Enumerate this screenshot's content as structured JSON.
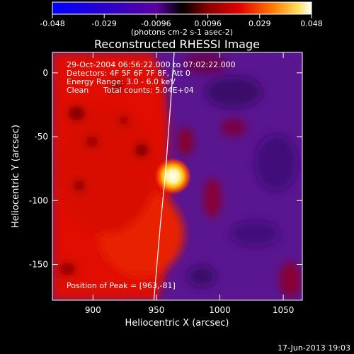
{
  "chart_data": {
    "type": "heatmap",
    "title": "Reconstructed RHESSI Image",
    "xlabel": "Heliocentric X (arcsec)",
    "ylabel": "Heliocentric Y (arcsec)",
    "xlim": [
      868,
      1065
    ],
    "ylim": [
      -178,
      16
    ],
    "x_ticks": [
      900,
      950,
      1000,
      1050
    ],
    "y_ticks": [
      0,
      -50,
      -100,
      -150
    ],
    "colorbar": {
      "min": -0.048,
      "max": 0.048,
      "ticks": [
        "-0.048",
        "-0.029",
        "-0.0096",
        "0.0096",
        "0.029",
        "0.048"
      ],
      "unit_label": "(photons cm-2 s-1 asec-2)"
    },
    "annotations": {
      "time_range": "29-Oct-2004 06:56:22.000 to 07:02:22.000",
      "detectors": "Detectors: 4F 5F 6F 7F 8F, Att 0",
      "energy": "Energy Range: 3.0 - 6.0 keV",
      "method": "Clean",
      "counts": "Total counts: 5.04E+04",
      "peak": "Position of Peak = [963,-81]"
    },
    "peak": {
      "x": 963,
      "y": -81
    },
    "limb_points": [
      [
        964,
        16
      ],
      [
        960,
        -40
      ],
      [
        957,
        -80
      ],
      [
        953,
        -120
      ],
      [
        948,
        -178
      ]
    ]
  },
  "footer": {
    "date": "17-Jun-2013 19:03"
  }
}
